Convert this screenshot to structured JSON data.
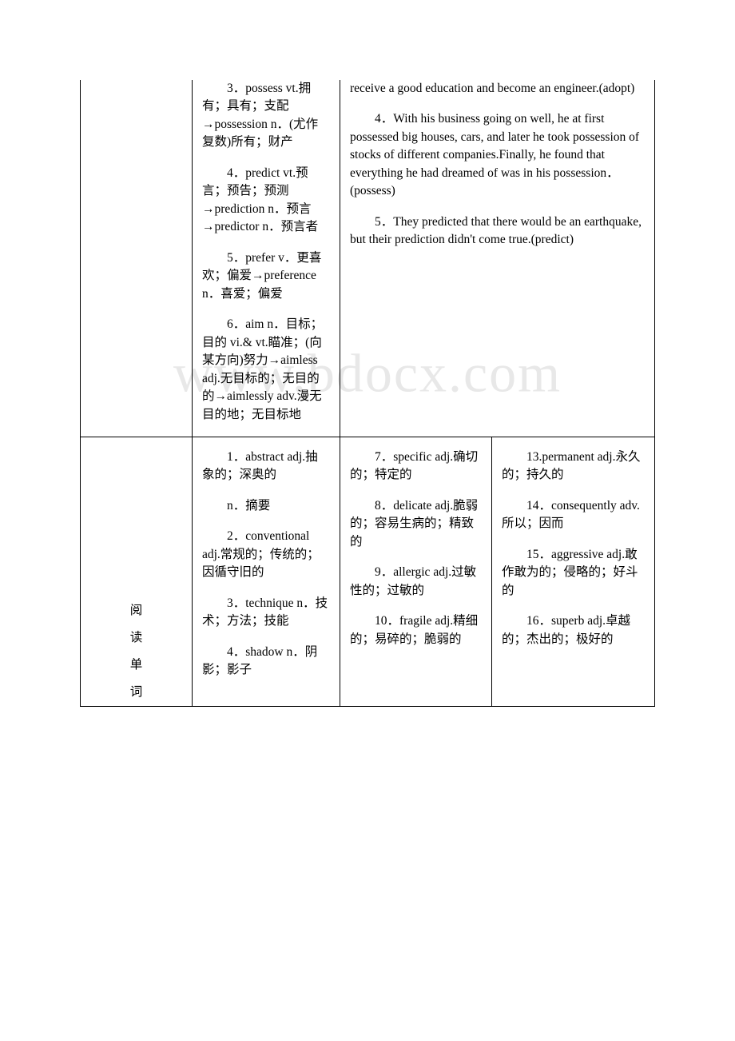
{
  "watermark": "www.bdocx.com",
  "row1": {
    "col2": {
      "p3": "3．possess vt.拥有；具有；支配→possession n．(尤作复数)所有；财产",
      "p4": "4．predict vt.预言；预告；预测→prediction n．预言→predictor n．预言者",
      "p5": "5．prefer v．更喜欢；偏爱→preference n．喜爱；偏爱",
      "p6": "6．aim n．目标；目的 vi.& vt.瞄准；(向某方向)努力→aimless adj.无目标的；无目的的→aimlessly adv.漫无目的地；无目标地"
    },
    "col3": {
      "p3_part": "receive a good education and become an engineer.(adopt)",
      "p4": "4．With his business going on well, he at first possessed big houses, cars, and later he took possession of stocks of different companies.Finally, he found that everything he had dreamed of was in his possession．(possess)",
      "p5": "5．They predicted that there would be an earthquake, but their prediction didn't come true.(predict)"
    }
  },
  "row2": {
    "label": {
      "c1": "阅",
      "c2": "读",
      "c3": "单",
      "c4": "词"
    },
    "col2": {
      "p1a": "1．abstract adj.抽象的；深奥的",
      "p1b": "n．摘要",
      "p2": "2．conventional adj.常规的；传统的；因循守旧的",
      "p3": "3．technique n．技术；方法；技能",
      "p4": "4．shadow n．阴影；影子"
    },
    "col3": {
      "p7": "7．specific adj.确切的；特定的",
      "p8": "8．delicate adj.脆弱的；容易生病的；精致的",
      "p9": "9．allergic adj.过敏性的；过敏的",
      "p10": "10．fragile adj.精细的；易碎的；脆弱的"
    },
    "col4": {
      "p13": "13.permanent adj.永久的；持久的",
      "p14": "14．consequently adv.所以；因而",
      "p15": "15．aggressive adj.敢作敢为的；侵略的；好斗的",
      "p16": "16．superb adj.卓越的；杰出的；极好的"
    }
  }
}
